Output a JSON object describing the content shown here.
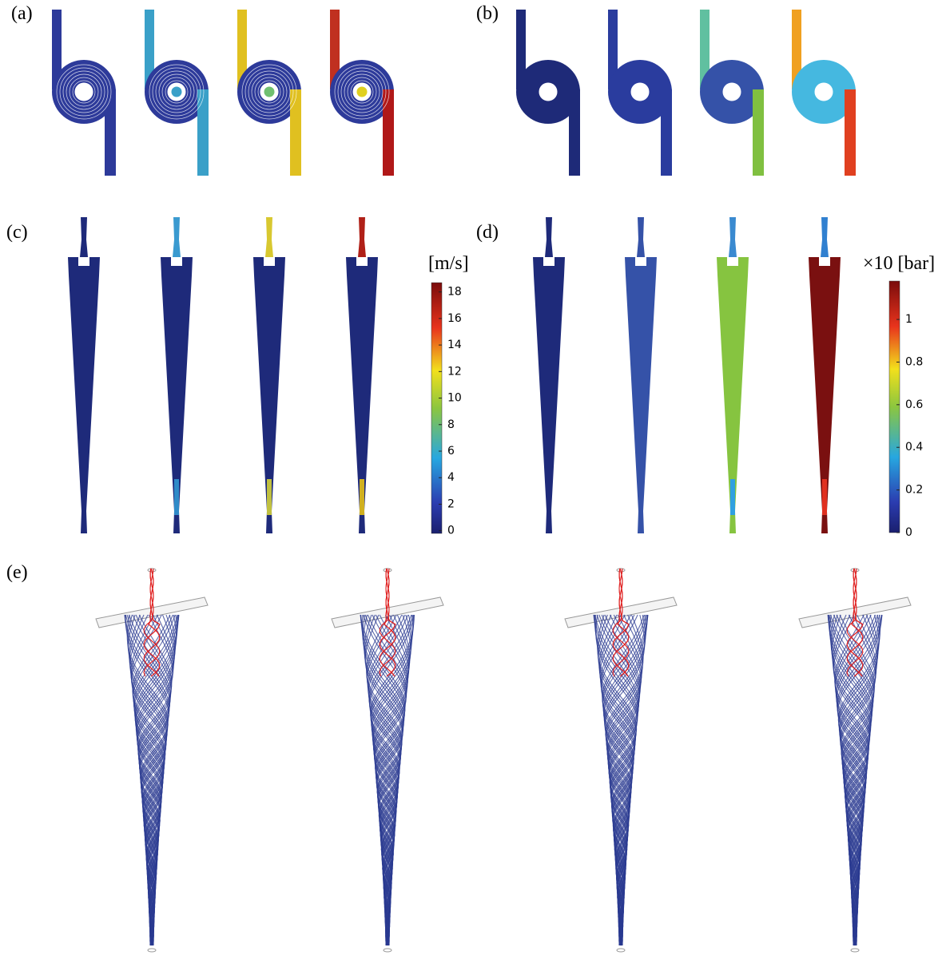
{
  "panels": {
    "a": "(a)",
    "b": "(b)",
    "c": "(c)",
    "d": "(d)",
    "e": "(e)"
  },
  "colorbars": [
    {
      "title": "[m/s]",
      "lim": [
        -0.2,
        18.7
      ],
      "ticks": [
        0,
        2,
        4,
        6,
        8,
        10,
        12,
        14,
        16,
        18
      ]
    },
    {
      "title": "×10 [bar]",
      "lim": [
        0,
        1.18
      ],
      "ticks": [
        0,
        0.2,
        0.4,
        0.6,
        0.8,
        1
      ]
    }
  ]
}
